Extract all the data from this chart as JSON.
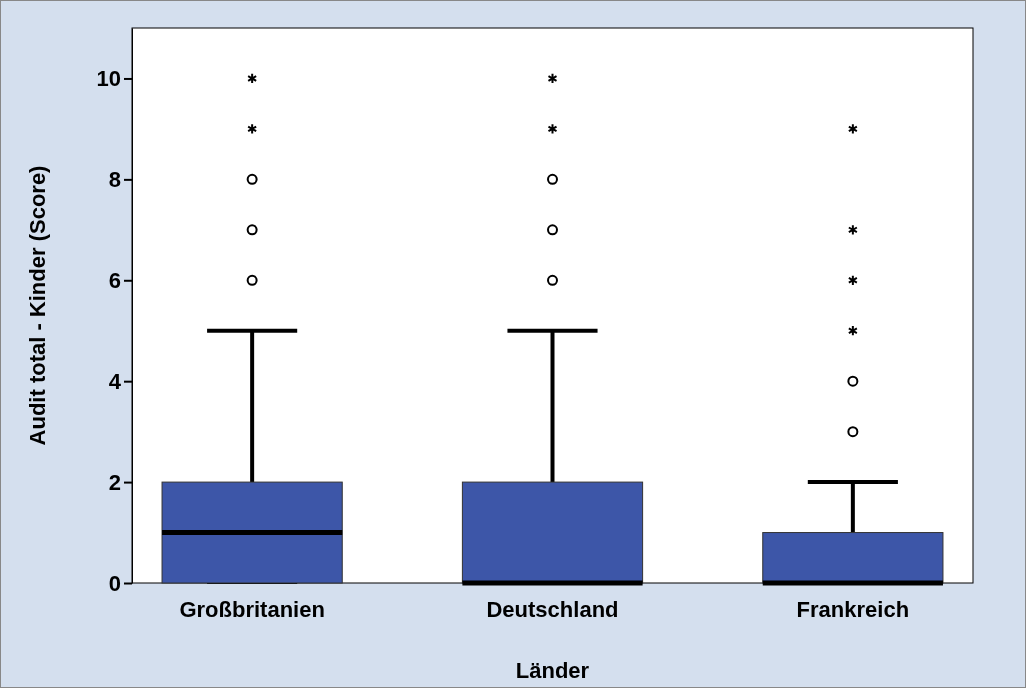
{
  "chart_data": {
    "type": "box",
    "xlabel": "Länder",
    "ylabel": "Audit total - Kinder (Score)",
    "categories": [
      "Großbritanien",
      "Deutschland",
      "Frankreich"
    ],
    "color": "#3d56a8",
    "boxes": [
      {
        "low": 0,
        "q1": 0,
        "median": 1,
        "q3": 2,
        "high": 5,
        "outliers": [
          6,
          7,
          8,
          9,
          10
        ]
      },
      {
        "low": 0,
        "q1": 0,
        "median": 0,
        "q3": 2,
        "high": 5,
        "outliers": [
          6,
          7,
          8,
          9,
          10
        ]
      },
      {
        "low": 0,
        "q1": 0,
        "median": 0,
        "q3": 1,
        "high": 2,
        "outliers": [
          3,
          4,
          5,
          6,
          7,
          9
        ]
      }
    ],
    "ylim": [
      0,
      11
    ],
    "yticks": [
      0,
      2,
      4,
      6,
      8,
      10
    ],
    "grid": false
  }
}
